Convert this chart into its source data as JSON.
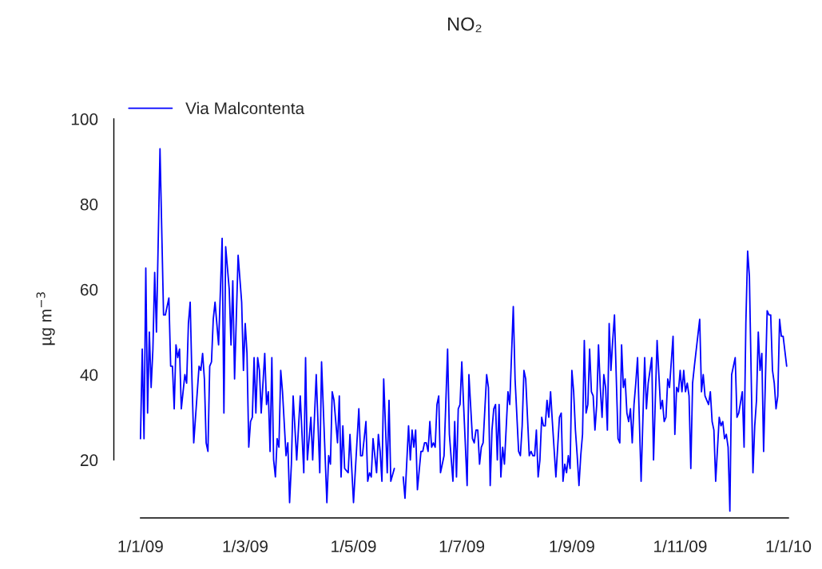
{
  "chart_data": {
    "type": "line",
    "title": "NO₂",
    "ylabel": "µg m$^{−3}$",
    "xlim": [
      "2008-12-17",
      "2010-01-01"
    ],
    "xticks": [
      {
        "value": "2009-01-01",
        "label": "1/1/09"
      },
      {
        "value": "2009-03-01",
        "label": "1/3/09"
      },
      {
        "value": "2009-05-01",
        "label": "1/5/09"
      },
      {
        "value": "2009-07-01",
        "label": "1/7/09"
      },
      {
        "value": "2009-09-01",
        "label": "1/9/09"
      },
      {
        "value": "2009-11-01",
        "label": "1/11/09"
      },
      {
        "value": "2010-01-01",
        "label": "1/1/10"
      }
    ],
    "ylim": [
      6.4,
      100
    ],
    "yticks": [
      20,
      40,
      60,
      80,
      100
    ],
    "grid": false,
    "legend": "top left",
    "marker": "none",
    "line_style": "solid",
    "series": [
      {
        "name": "Via Malcontenta",
        "color": "#0000ff",
        "x": [
          "2009-01-01",
          "2009-01-02",
          "2009-01-03",
          "2009-01-04",
          "2009-01-05",
          "2009-01-06",
          "2009-01-07",
          "2009-01-08",
          "2009-01-09",
          "2009-01-10",
          "2009-01-12",
          "2009-01-14",
          "2009-01-15",
          "2009-01-17",
          "2009-01-18",
          "2009-01-19",
          "2009-01-20",
          "2009-01-21",
          "2009-01-22",
          "2009-01-23",
          "2009-01-24",
          "2009-01-26",
          "2009-01-27",
          "2009-01-28",
          "2009-01-29",
          "2009-01-30",
          "2009-01-31",
          "2009-02-03",
          "2009-02-04",
          "2009-02-05",
          "2009-02-06",
          "2009-02-07",
          "2009-02-08",
          "2009-02-09",
          "2009-02-10",
          "2009-02-11",
          "2009-02-12",
          "2009-02-14",
          "2009-02-16",
          "2009-02-17",
          "2009-02-18",
          "2009-02-20",
          "2009-02-21",
          "2009-02-22",
          "2009-02-23",
          "2009-02-25",
          "2009-02-27",
          "2009-02-28",
          "2009-03-01",
          "2009-03-02",
          "2009-03-03",
          "2009-03-04",
          "2009-03-05",
          "2009-03-06",
          "2009-03-07",
          "2009-03-08",
          "2009-03-09",
          "2009-03-10",
          "2009-03-12",
          "2009-03-13",
          "2009-03-14",
          "2009-03-15",
          "2009-03-16",
          "2009-03-17",
          "2009-03-18",
          "2009-03-19",
          "2009-03-20",
          "2009-03-21",
          "2009-03-22",
          "2009-03-24",
          "2009-03-25",
          "2009-03-26",
          "2009-03-27",
          "2009-03-28",
          "2009-03-30",
          "2009-04-01",
          "2009-04-03",
          "2009-04-04",
          "2009-04-05",
          "2009-04-07",
          "2009-04-08",
          "2009-04-10",
          "2009-04-12",
          "2009-04-13",
          "2009-04-16",
          "2009-04-17",
          "2009-04-18",
          "2009-04-19",
          "2009-04-20",
          "2009-04-22",
          "2009-04-23",
          "2009-04-24",
          "2009-04-25",
          "2009-04-26",
          "2009-04-28",
          "2009-04-29",
          "2009-04-30",
          "2009-05-01",
          "2009-05-04",
          "2009-05-05",
          "2009-05-06",
          "2009-05-08",
          "2009-05-09",
          "2009-05-10",
          "2009-05-11",
          "2009-05-12",
          "2009-05-14",
          "2009-05-15",
          "2009-05-16",
          "2009-05-17",
          "2009-05-18",
          "2009-05-20",
          "2009-05-21",
          "2009-05-22",
          "2009-05-24",
          "2009-05-26",
          "2009-05-29",
          "2009-05-30",
          "2009-06-01",
          "2009-06-02",
          "2009-06-03",
          "2009-06-04",
          "2009-06-05",
          "2009-06-06",
          "2009-06-08",
          "2009-06-09",
          "2009-06-10",
          "2009-06-11",
          "2009-06-12",
          "2009-06-13",
          "2009-06-14",
          "2009-06-15",
          "2009-06-16",
          "2009-06-17",
          "2009-06-18",
          "2009-06-19",
          "2009-06-21",
          "2009-06-23",
          "2009-06-24",
          "2009-06-26",
          "2009-06-27",
          "2009-06-28",
          "2009-06-29",
          "2009-06-30",
          "2009-07-01",
          "2009-07-02",
          "2009-07-04",
          "2009-07-05",
          "2009-07-07",
          "2009-07-08",
          "2009-07-09",
          "2009-07-10",
          "2009-07-11",
          "2009-07-12",
          "2009-07-13",
          "2009-07-15",
          "2009-07-16",
          "2009-07-17",
          "2009-07-18",
          "2009-07-19",
          "2009-07-20",
          "2009-07-21",
          "2009-07-22",
          "2009-07-23",
          "2009-07-24",
          "2009-07-25",
          "2009-07-27",
          "2009-07-28",
          "2009-07-30",
          "2009-07-31",
          "2009-08-02",
          "2009-08-03",
          "2009-08-04",
          "2009-08-05",
          "2009-08-06",
          "2009-08-08",
          "2009-08-09",
          "2009-08-10",
          "2009-08-11",
          "2009-08-12",
          "2009-08-13",
          "2009-08-14",
          "2009-08-15",
          "2009-08-16",
          "2009-08-17",
          "2009-08-18",
          "2009-08-19",
          "2009-08-20",
          "2009-08-21",
          "2009-08-23",
          "2009-08-25",
          "2009-08-26",
          "2009-08-27",
          "2009-08-28",
          "2009-08-29",
          "2009-08-30",
          "2009-08-31",
          "2009-09-01",
          "2009-09-02",
          "2009-09-03",
          "2009-09-04",
          "2009-09-05",
          "2009-09-06",
          "2009-09-07",
          "2009-09-08",
          "2009-09-09",
          "2009-09-10",
          "2009-09-11",
          "2009-09-12",
          "2009-09-13",
          "2009-09-14",
          "2009-09-15",
          "2009-09-16",
          "2009-09-17",
          "2009-09-18",
          "2009-09-19",
          "2009-09-20",
          "2009-09-21",
          "2009-09-22",
          "2009-09-23",
          "2009-09-24",
          "2009-09-25",
          "2009-09-27",
          "2009-09-28",
          "2009-09-29",
          "2009-09-30",
          "2009-10-01",
          "2009-10-02",
          "2009-10-03",
          "2009-10-04",
          "2009-10-05",
          "2009-10-06",
          "2009-10-07",
          "2009-10-08",
          "2009-10-10",
          "2009-10-12",
          "2009-10-13",
          "2009-10-14",
          "2009-10-16",
          "2009-10-17",
          "2009-10-19",
          "2009-10-21",
          "2009-10-22",
          "2009-10-23",
          "2009-10-24",
          "2009-10-25",
          "2009-10-26",
          "2009-10-28",
          "2009-10-29",
          "2009-10-30",
          "2009-10-31",
          "2009-11-01",
          "2009-11-02",
          "2009-11-03",
          "2009-11-04",
          "2009-11-05",
          "2009-11-06",
          "2009-11-07",
          "2009-11-08",
          "2009-11-09",
          "2009-11-12",
          "2009-11-13",
          "2009-11-14",
          "2009-11-15",
          "2009-11-16",
          "2009-11-17",
          "2009-11-18",
          "2009-11-19",
          "2009-11-20",
          "2009-11-21",
          "2009-11-23",
          "2009-11-24",
          "2009-11-25",
          "2009-11-26",
          "2009-11-27",
          "2009-11-28",
          "2009-11-29",
          "2009-11-30",
          "2009-12-02",
          "2009-12-03",
          "2009-12-04",
          "2009-12-06",
          "2009-12-07",
          "2009-12-08",
          "2009-12-09",
          "2009-12-10",
          "2009-12-12",
          "2009-12-13",
          "2009-12-14",
          "2009-12-15",
          "2009-12-16",
          "2009-12-17",
          "2009-12-18",
          "2009-12-20",
          "2009-12-21",
          "2009-12-22",
          "2009-12-23",
          "2009-12-24",
          "2009-12-25",
          "2009-12-26",
          "2009-12-27",
          "2009-12-28",
          "2009-12-29",
          "2009-12-31"
        ],
        "values": [
          25,
          46,
          25,
          65,
          31,
          50,
          37,
          46,
          64,
          50,
          93,
          54,
          54,
          58,
          42,
          42,
          32,
          47,
          44,
          46,
          32,
          40,
          38,
          52,
          57,
          39,
          24,
          42,
          41,
          45,
          39,
          24,
          22,
          42,
          43,
          53,
          57,
          47,
          72,
          31,
          70,
          60,
          47,
          62,
          39,
          68,
          57,
          41,
          52,
          45,
          23,
          29,
          30,
          44,
          31,
          44,
          41,
          31,
          45,
          33,
          36,
          22,
          44,
          20,
          16,
          25,
          23,
          41,
          36,
          21,
          24,
          10,
          19,
          35,
          20,
          35,
          17,
          44,
          20,
          30,
          20,
          40,
          17,
          43,
          10,
          21,
          19,
          36,
          34,
          24,
          35,
          16,
          28,
          18,
          17,
          26,
          18,
          10,
          32,
          21,
          21,
          29,
          15,
          17,
          16,
          25,
          17,
          26,
          22,
          15,
          39,
          17,
          34,
          15,
          18,
          null,
          16,
          11,
          28,
          20,
          27,
          23,
          27,
          13,
          22,
          22,
          24,
          24,
          22,
          29,
          23,
          24,
          23,
          33,
          35,
          17,
          21,
          46,
          26,
          15,
          29,
          16,
          32,
          33,
          43,
          33,
          14,
          40,
          25,
          24,
          27,
          27,
          19,
          23,
          24,
          40,
          37,
          14,
          27,
          32,
          33,
          20,
          33,
          16,
          23,
          19,
          36,
          33,
          56,
          39,
          22,
          21,
          28,
          41,
          39,
          21,
          22,
          21,
          21,
          27,
          16,
          20,
          30,
          28,
          28,
          34,
          30,
          36,
          29,
          16,
          30,
          31,
          15,
          19,
          17,
          21,
          18,
          41,
          36,
          27,
          21,
          14,
          21,
          26,
          48,
          31,
          33,
          46,
          36,
          35,
          27,
          33,
          47,
          37,
          30,
          40,
          37,
          27,
          52,
          41,
          48,
          54,
          25,
          24,
          47,
          37,
          39,
          31,
          29,
          32,
          24,
          33,
          38,
          44,
          15,
          44,
          32,
          38,
          44,
          20,
          48,
          32,
          34,
          29,
          30,
          39,
          37,
          49,
          26,
          37,
          36,
          41,
          36,
          41,
          36,
          38,
          35,
          18,
          38,
          42,
          53,
          36,
          40,
          35,
          34,
          33,
          36,
          29,
          27,
          15,
          30,
          28,
          29,
          25,
          26,
          23,
          8,
          40,
          44,
          30,
          31,
          36,
          23,
          52,
          69,
          63,
          17,
          28,
          34,
          50,
          41,
          45,
          22,
          55,
          54,
          54,
          41,
          38,
          32,
          35,
          53,
          49,
          49,
          42
        ]
      }
    ]
  }
}
